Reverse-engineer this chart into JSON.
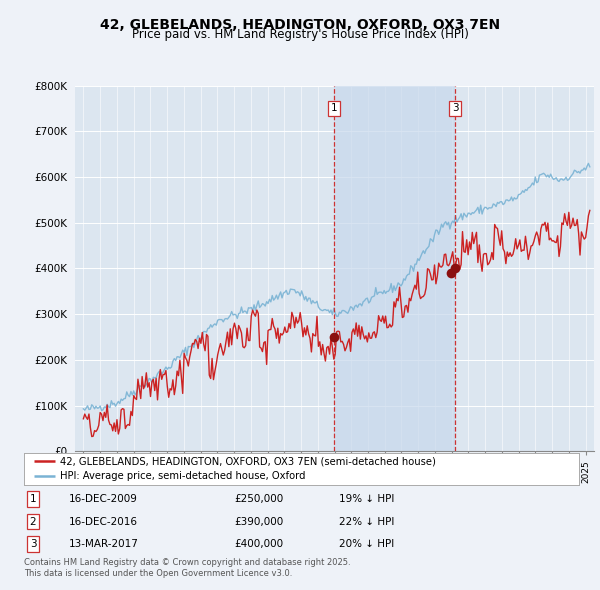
{
  "title": "42, GLEBELANDS, HEADINGTON, OXFORD, OX3 7EN",
  "subtitle": "Price paid vs. HM Land Registry's House Price Index (HPI)",
  "legend_line1": "42, GLEBELANDS, HEADINGTON, OXFORD, OX3 7EN (semi-detached house)",
  "legend_line2": "HPI: Average price, semi-detached house, Oxford",
  "footer1": "Contains HM Land Registry data © Crown copyright and database right 2025.",
  "footer2": "This data is licensed under the Open Government Licence v3.0.",
  "transactions": [
    {
      "label": "1",
      "date_str": "16-DEC-2009",
      "price": 250000,
      "note": "19% ↓ HPI",
      "x": 2009.96
    },
    {
      "label": "2",
      "date_str": "16-DEC-2016",
      "price": 390000,
      "note": "22% ↓ HPI",
      "x": 2016.96
    },
    {
      "label": "3",
      "date_str": "13-MAR-2017",
      "price": 400000,
      "note": "20% ↓ HPI",
      "x": 2017.2
    }
  ],
  "vline_color": "#cc3333",
  "vlines_x": [
    2009.96,
    2017.2
  ],
  "hpi_color": "#7ab3d4",
  "price_color": "#cc2222",
  "marker_color": "#8B1010",
  "background_color": "#eef2f8",
  "plot_bg": "#dce6f0",
  "vline_fill_color": "#c8d8ec",
  "ylim": [
    0,
    800000
  ],
  "xlim": [
    1994.5,
    2025.5
  ],
  "yticks": [
    0,
    100000,
    200000,
    300000,
    400000,
    500000,
    600000,
    700000,
    800000
  ],
  "ytick_labels": [
    "£0",
    "£100K",
    "£200K",
    "£300K",
    "£400K",
    "£500K",
    "£600K",
    "£700K",
    "£800K"
  ]
}
